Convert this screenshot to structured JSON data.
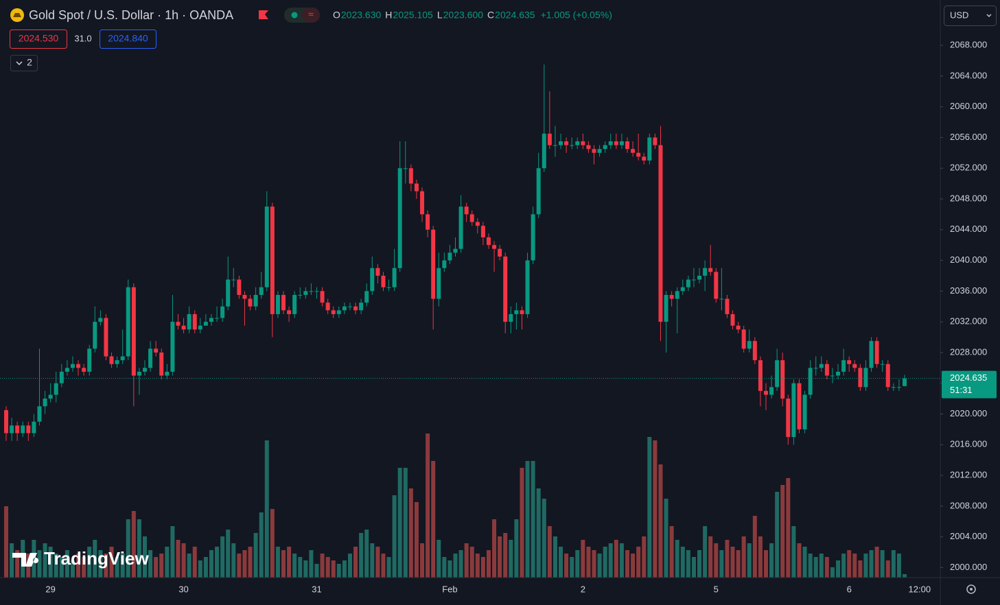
{
  "chart_data": {
    "type": "candlestick",
    "title": "Gold Spot / U.S. Dollar · 1h · OANDA",
    "ohlc_legend": [
      {
        "key": "O",
        "value": "2023.630"
      },
      {
        "key": "H",
        "value": "2025.105"
      },
      {
        "key": "L",
        "value": "2023.600"
      },
      {
        "key": "C",
        "value": "2024.635"
      }
    ],
    "change": "+1.005 (+0.05%)",
    "bid": "2024.530",
    "spread": "31.0",
    "ask": "2024.840",
    "indicators_count": "2",
    "currency": "USD",
    "last_price_label": "2024.635",
    "countdown": "51:31",
    "next_bar_label": "12:00",
    "watermark": "TradingView",
    "up_color": "#089981",
    "down_color": "#f23645",
    "volume_up_color": "#1f6a63",
    "volume_down_color": "#8b3a3c",
    "categories": [
      null,
      null,
      null,
      null,
      null,
      null,
      null,
      null,
      "29",
      null,
      null,
      null,
      null,
      null,
      null,
      null,
      null,
      null,
      null,
      null,
      null,
      null,
      null,
      null,
      null,
      null,
      null,
      null,
      null,
      null,
      null,
      null,
      "30",
      null,
      null,
      null,
      null,
      null,
      null,
      null,
      null,
      null,
      null,
      null,
      null,
      null,
      null,
      null,
      null,
      null,
      null,
      null,
      null,
      null,
      null,
      null,
      "31",
      null,
      null,
      null,
      null,
      null,
      null,
      null,
      null,
      null,
      null,
      null,
      null,
      null,
      null,
      null,
      null,
      null,
      null,
      null,
      null,
      null,
      null,
      null,
      "Feb",
      null,
      null,
      null,
      null,
      null,
      null,
      null,
      null,
      null,
      null,
      null,
      null,
      null,
      null,
      null,
      null,
      null,
      null,
      null,
      null,
      null,
      null,
      null,
      "2",
      null,
      null,
      null,
      null,
      null,
      null,
      null,
      null,
      null,
      null,
      null,
      null,
      null,
      null,
      null,
      null,
      null,
      null,
      null,
      null,
      null,
      null,
      null,
      "5",
      null,
      null,
      null,
      null,
      null,
      null,
      null,
      null,
      null,
      null,
      null,
      null,
      null,
      null,
      null,
      null,
      null,
      null,
      null,
      null,
      null,
      null,
      null,
      "6",
      null,
      null,
      null,
      null,
      null,
      null,
      null,
      null,
      null,
      null
    ],
    "open": [
      2020.5,
      2017.5,
      2018.5,
      2017.5,
      2018.5,
      2017.5,
      2019,
      2021,
      2022,
      2022.5,
      2024,
      2025.5,
      2026,
      2026.5,
      2026,
      2025.5,
      2028.5,
      2032,
      2032.5,
      2027.5,
      2026.5,
      2027,
      2027.5,
      2036.5,
      2025,
      2025.5,
      2026,
      2028.5,
      2028,
      2025,
      2025.5,
      2032,
      2031.5,
      2031,
      2033,
      2031,
      2031.5,
      2032,
      2032.5,
      2032.5,
      2034,
      2037.5,
      2037.5,
      2035.5,
      2035,
      2034,
      2035.5,
      2036.5,
      2047,
      2033,
      2035.5,
      2033.5,
      2033,
      2035.5,
      2035.5,
      2036,
      2036,
      2036,
      2034.5,
      2033.5,
      2033,
      2033.5,
      2034,
      2034,
      2033.5,
      2034.5,
      2036,
      2039,
      2038,
      2036.5,
      2036.5,
      2039,
      2052,
      2052,
      2050,
      2049,
      2046,
      2044,
      2035,
      2039,
      2040,
      2041,
      2041.5,
      2047,
      2046,
      2045,
      2044.5,
      2043,
      2042,
      2041.5,
      2040.5,
      2032,
      2033,
      2033.5,
      2033,
      2040,
      2046,
      2052,
      2056.5,
      2055,
      2055,
      2055.5,
      2055,
      2055,
      2055.5,
      2055,
      2054.5,
      2054,
      2054.5,
      2055,
      2055.5,
      2055,
      2055.5,
      2054.5,
      2054,
      2053.5,
      2053,
      2056,
      2055,
      2032,
      2035.5,
      2035,
      2036,
      2036.5,
      2037.5,
      2037.5,
      2038,
      2039,
      2038.5,
      2035,
      2035,
      2033,
      2031.5,
      2031,
      2028.5,
      2029.5,
      2027,
      2023,
      2022.5,
      2023.5,
      2027,
      2022,
      2017,
      2024,
      2018,
      2022.5,
      2026,
      2026,
      2026.5,
      2025,
      2025,
      2025.5,
      2027,
      2026.5,
      2026,
      2023.5,
      2026,
      2029.5,
      2026.5,
      2026.5,
      2023.5,
      2023.5,
      2023.63
    ],
    "high": [
      2021,
      2019.5,
      2019,
      2019,
      2019,
      2020,
      2028.5,
      2023,
      2024,
      2025.5,
      2026.5,
      2027,
      2027.5,
      2027,
      2026.5,
      2029,
      2034,
      2033.5,
      2033,
      2028,
      2027.5,
      2031,
      2037.5,
      2037,
      2026,
      2027,
      2029.5,
      2029.5,
      2028.5,
      2026.5,
      2035.5,
      2033,
      2032.5,
      2034,
      2033.5,
      2032.5,
      2033,
      2033,
      2034,
      2035,
      2040.5,
      2039,
      2038,
      2036,
      2035.5,
      2036.5,
      2038.5,
      2049,
      2047.5,
      2036,
      2036,
      2034,
      2036,
      2036.5,
      2036.5,
      2037,
      2036.5,
      2036.5,
      2035,
      2034,
      2034,
      2034.5,
      2034.5,
      2034.5,
      2035,
      2037,
      2040.5,
      2039.5,
      2038.5,
      2037.5,
      2041.5,
      2055.5,
      2055.5,
      2052.5,
      2050.5,
      2049.5,
      2046.5,
      2044.5,
      2041,
      2041,
      2042,
      2043,
      2048.5,
      2047.5,
      2046.5,
      2045.5,
      2045,
      2043.5,
      2042.5,
      2042,
      2041,
      2034,
      2034.5,
      2034,
      2041,
      2047,
      2054,
      2065.5,
      2062,
      2057.5,
      2056.5,
      2056,
      2056,
      2056,
      2056.5,
      2055.5,
      2055,
      2055,
      2055.5,
      2056.5,
      2056.5,
      2056.5,
      2056,
      2055.5,
      2056.5,
      2054,
      2056.5,
      2056.5,
      2057.5,
      2036,
      2036,
      2036.5,
      2037.5,
      2038,
      2039,
      2039,
      2040,
      2042,
      2039,
      2039,
      2035.5,
      2033.5,
      2032,
      2031.5,
      2031,
      2030,
      2027.5,
      2024,
      2025,
      2028.5,
      2028,
      2022.5,
      2024.5,
      2024.5,
      2023,
      2027,
      2027.5,
      2027.5,
      2027,
      2026,
      2026.5,
      2028.5,
      2027.5,
      2027,
      2026.5,
      2027,
      2030,
      2030,
      2027,
      2027,
      2024,
      2024.5,
      2025.105
    ],
    "low": [
      2016.5,
      2016.5,
      2016.5,
      2017,
      2016.5,
      2017,
      2018.5,
      2020,
      2021.5,
      2021.5,
      2023.5,
      2025,
      2025.5,
      2025,
      2025,
      2025,
      2028,
      2031.5,
      2027,
      2026,
      2026,
      2026.5,
      2027,
      2021,
      2022.5,
      2025,
      2025.5,
      2027.5,
      2024.5,
      2024.5,
      2025,
      2031,
      2030.5,
      2030.5,
      2030.5,
      2030.5,
      2031.5,
      2031.5,
      2032,
      2032,
      2033.5,
      2036.5,
      2035,
      2031.5,
      2033.5,
      2033.5,
      2035,
      2036,
      2030,
      2032.5,
      2033,
      2032,
      2032.5,
      2035,
      2035,
      2035.5,
      2035,
      2034,
      2033,
      2032.5,
      2032.5,
      2033,
      2033.5,
      2033,
      2033,
      2034,
      2035.5,
      2037,
      2036,
      2036,
      2036,
      2038.5,
      2050,
      2049,
      2048,
      2045,
      2043,
      2031,
      2034,
      2038.5,
      2039.5,
      2040.5,
      2041,
      2045,
      2044.5,
      2043.5,
      2042,
      2041.5,
      2038.5,
      2040,
      2030.5,
      2030.5,
      2031,
      2031,
      2032.5,
      2039.5,
      2045.5,
      2051.5,
      2054.5,
      2053.5,
      2054.5,
      2054,
      2054.5,
      2054.5,
      2054.5,
      2054,
      2052.5,
      2053.5,
      2054,
      2054.5,
      2054.5,
      2054.5,
      2054,
      2053.5,
      2053,
      2052.5,
      2052.5,
      2054.5,
      2029.5,
      2028,
      2034,
      2030.5,
      2035.5,
      2036,
      2036.5,
      2037,
      2036,
      2038,
      2034.5,
      2033.5,
      2032.5,
      2031,
      2030.5,
      2028,
      2028,
      2026.5,
      2021,
      2020.5,
      2022,
      2023,
      2021,
      2016,
      2016,
      2017.5,
      2017.5,
      2022,
      2025,
      2025.5,
      2024.5,
      2024,
      2024.5,
      2025,
      2025.5,
      2025.5,
      2023,
      2023,
      2025.5,
      2026,
      2025.5,
      2023,
      2023,
      2023,
      2023.6
    ],
    "close": [
      2017.5,
      2018.5,
      2017.5,
      2018.5,
      2017.5,
      2019,
      2021,
      2022,
      2022.5,
      2024,
      2025.5,
      2026,
      2026.5,
      2026,
      2025.5,
      2028.5,
      2032,
      2032.5,
      2027.5,
      2026.5,
      2027,
      2027.5,
      2036.5,
      2025,
      2025.5,
      2026,
      2028.5,
      2028,
      2025,
      2025.5,
      2032,
      2031.5,
      2031,
      2033,
      2031,
      2031.5,
      2032,
      2032.5,
      2032.5,
      2034,
      2037.5,
      2037.5,
      2035.5,
      2035,
      2034,
      2035.5,
      2036.5,
      2047,
      2033,
      2035.5,
      2033.5,
      2033,
      2035.5,
      2035.5,
      2036,
      2036,
      2036,
      2034.5,
      2033.5,
      2033,
      2033.5,
      2034,
      2034,
      2033.5,
      2034.5,
      2036,
      2039,
      2038,
      2036.5,
      2036.5,
      2039,
      2052,
      2052,
      2050,
      2049,
      2046,
      2044,
      2035,
      2039,
      2040,
      2041,
      2041.5,
      2047,
      2046,
      2045,
      2044.5,
      2043,
      2042,
      2041.5,
      2040.5,
      2032,
      2033,
      2033.5,
      2033,
      2040,
      2046,
      2052,
      2056.5,
      2055,
      2055,
      2055.5,
      2055,
      2055,
      2055.5,
      2055,
      2054.5,
      2054,
      2054.5,
      2055,
      2055.5,
      2055,
      2055.5,
      2054.5,
      2054,
      2053.5,
      2053,
      2056,
      2055,
      2032,
      2035.5,
      2035,
      2036,
      2036.5,
      2037.5,
      2037.5,
      2038,
      2039,
      2038.5,
      2035,
      2035,
      2033,
      2031.5,
      2031,
      2028.5,
      2029.5,
      2027,
      2023,
      2022.5,
      2023.5,
      2027,
      2022,
      2017,
      2024,
      2018,
      2022.5,
      2026,
      2026,
      2026.5,
      2025,
      2025,
      2025.5,
      2027,
      2026.5,
      2026,
      2023.5,
      2026,
      2029.5,
      2026.5,
      2026.5,
      2023.5,
      2023.5,
      2023.5,
      2024.635
    ],
    "volume": [
      104,
      50,
      40,
      55,
      35,
      55,
      40,
      50,
      45,
      35,
      30,
      40,
      25,
      35,
      30,
      45,
      55,
      40,
      35,
      45,
      30,
      35,
      85,
      97,
      85,
      60,
      40,
      30,
      35,
      45,
      75,
      55,
      50,
      35,
      45,
      25,
      30,
      40,
      45,
      60,
      70,
      50,
      35,
      40,
      45,
      65,
      95,
      200,
      100,
      45,
      40,
      45,
      35,
      30,
      25,
      40,
      20,
      35,
      30,
      25,
      20,
      25,
      35,
      45,
      65,
      70,
      50,
      45,
      35,
      30,
      120,
      160,
      160,
      130,
      110,
      50,
      210,
      170,
      55,
      30,
      25,
      35,
      40,
      50,
      45,
      35,
      30,
      40,
      85,
      60,
      65,
      55,
      85,
      160,
      170,
      170,
      130,
      115,
      75,
      60,
      45,
      35,
      30,
      40,
      55,
      45,
      40,
      35,
      45,
      50,
      55,
      50,
      40,
      35,
      45,
      60,
      205,
      200,
      165,
      115,
      75,
      55,
      45,
      40,
      30,
      40,
      75,
      60,
      50,
      40,
      55,
      45,
      40,
      60,
      50,
      90,
      60,
      40,
      50,
      125,
      135,
      145,
      75,
      50,
      45,
      35,
      30,
      35,
      30,
      15,
      25,
      35,
      40,
      35,
      25,
      35,
      40,
      45,
      40,
      25,
      40,
      35,
      5
    ],
    "ylim": [
      1998.7,
      2073.9
    ],
    "yticks": [
      {
        "value": 2000,
        "label": "2000.000"
      },
      {
        "value": 2004,
        "label": "2004.000"
      },
      {
        "value": 2008,
        "label": "2008.000"
      },
      {
        "value": 2012,
        "label": "2012.000"
      },
      {
        "value": 2016,
        "label": "2016.000"
      },
      {
        "value": 2020,
        "label": "2020.000"
      },
      {
        "value": 2024,
        "label": "2024.000"
      },
      {
        "value": 2028,
        "label": "2028.000"
      },
      {
        "value": 2032,
        "label": "2032.000"
      },
      {
        "value": 2036,
        "label": "2036.000"
      },
      {
        "value": 2040,
        "label": "2040.000"
      },
      {
        "value": 2044,
        "label": "2044.000"
      },
      {
        "value": 2048,
        "label": "2048.000"
      },
      {
        "value": 2052,
        "label": "2052.000"
      },
      {
        "value": 2056,
        "label": "2056.000"
      },
      {
        "value": 2060,
        "label": "2060.000"
      },
      {
        "value": 2064,
        "label": "2064.000"
      },
      {
        "value": 2068,
        "label": "2068.000"
      }
    ]
  }
}
